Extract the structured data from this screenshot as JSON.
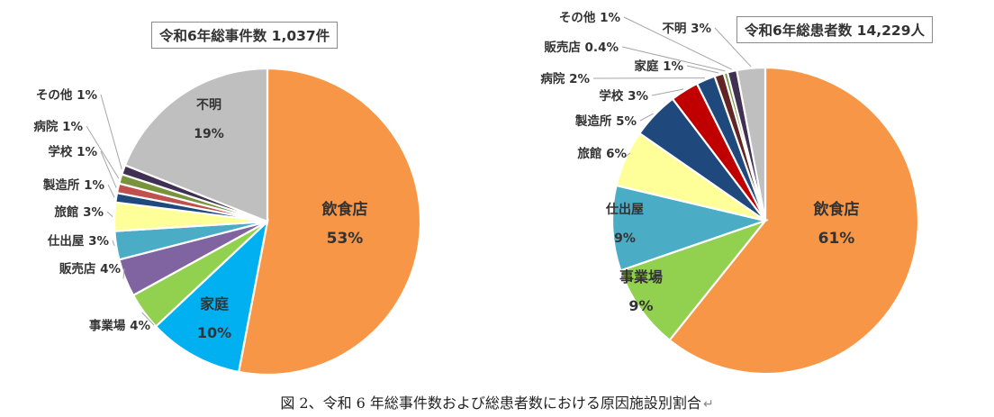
{
  "caption": "図 2、令和 6 年総事件数および総患者数における原因施設別割合",
  "caption_mark": "↵",
  "chart_data": [
    {
      "type": "pie",
      "title": "令和6年総事件数 1,037件",
      "slices": [
        {
          "label": "飲食店",
          "value": 53,
          "value_text": "53%",
          "color": "#F79646"
        },
        {
          "label": "家庭",
          "value": 10,
          "value_text": "10%",
          "color": "#00B0F0"
        },
        {
          "label": "事業場",
          "value": 4,
          "value_text": "4%",
          "color": "#92D050"
        },
        {
          "label": "販売店",
          "value": 4,
          "value_text": "4%",
          "color": "#8064A2"
        },
        {
          "label": "仕出屋",
          "value": 3,
          "value_text": "3%",
          "color": "#4BACC6"
        },
        {
          "label": "旅館",
          "value": 3,
          "value_text": "3%",
          "color": "#FFFF99"
        },
        {
          "label": "製造所",
          "value": 1,
          "value_text": "1%",
          "color": "#1F497D"
        },
        {
          "label": "学校",
          "value": 1,
          "value_text": "1%",
          "color": "#C0504D"
        },
        {
          "label": "病院",
          "value": 1,
          "value_text": "1%",
          "color": "#77933C"
        },
        {
          "label": "その他",
          "value": 1,
          "value_text": "1%",
          "color": "#403152"
        },
        {
          "label": "不明",
          "value": 19,
          "value_text": "19%",
          "color": "#BFBFBF"
        }
      ]
    },
    {
      "type": "pie",
      "title": "令和6年総患者数 14,229人",
      "slices": [
        {
          "label": "飲食店",
          "value": 61,
          "value_text": "61%",
          "color": "#F79646"
        },
        {
          "label": "事業場",
          "value": 9,
          "value_text": "9%",
          "color": "#92D050"
        },
        {
          "label": "仕出屋",
          "value": 9,
          "value_text": "9%",
          "color": "#4BACC6"
        },
        {
          "label": "旅館",
          "value": 6,
          "value_text": "6%",
          "color": "#FFFF99"
        },
        {
          "label": "製造所",
          "value": 5,
          "value_text": "5%",
          "color": "#1F497D"
        },
        {
          "label": "学校",
          "value": 3,
          "value_text": "3%",
          "color": "#C00000"
        },
        {
          "label": "病院",
          "value": 2,
          "value_text": "2%",
          "color": "#1F497D"
        },
        {
          "label": "家庭",
          "value": 1,
          "value_text": "1%",
          "color": "#632523"
        },
        {
          "label": "販売店",
          "value": 0.4,
          "value_text": "0.4%",
          "color": "#77933C"
        },
        {
          "label": "その他",
          "value": 1,
          "value_text": "1%",
          "color": "#403152"
        },
        {
          "label": "不明",
          "value": 3,
          "value_text": "3%",
          "color": "#BFBFBF"
        }
      ]
    }
  ]
}
